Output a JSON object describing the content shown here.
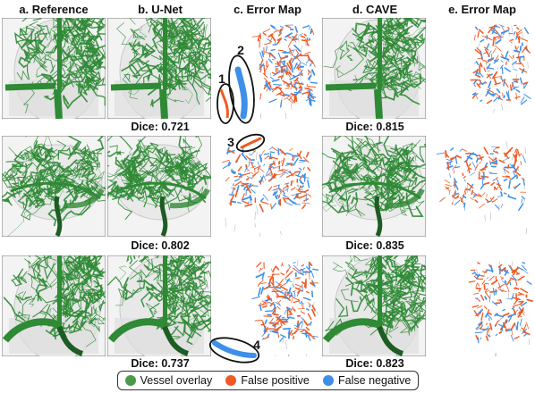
{
  "columns": [
    {
      "key": "ref",
      "label": "a. Reference"
    },
    {
      "key": "unet",
      "label": "b. U-Net"
    },
    {
      "key": "err1",
      "label": "c. Error Map"
    },
    {
      "key": "cave",
      "label": "d. CAVE"
    },
    {
      "key": "err2",
      "label": "e. Error Map"
    }
  ],
  "rows": [
    {
      "unet_dice": "Dice: 0.721",
      "cave_dice": "Dice: 0.815"
    },
    {
      "unet_dice": "Dice: 0.802",
      "cave_dice": "Dice: 0.835"
    },
    {
      "unet_dice": "Dice: 0.737",
      "cave_dice": "Dice: 0.823"
    }
  ],
  "annotations": [
    "1",
    "2",
    "3",
    "4"
  ],
  "legend": {
    "items": [
      {
        "label": "Vessel overlay",
        "color": "#4a9a4a"
      },
      {
        "label": "False positive",
        "color": "#f05a22"
      },
      {
        "label": "False negative",
        "color": "#3d8fe8"
      }
    ]
  },
  "colors": {
    "vessel": "#2f8a35",
    "vessel_dark": "#1d5c22",
    "fp": "#f05a22",
    "fn": "#3d8fe8"
  }
}
